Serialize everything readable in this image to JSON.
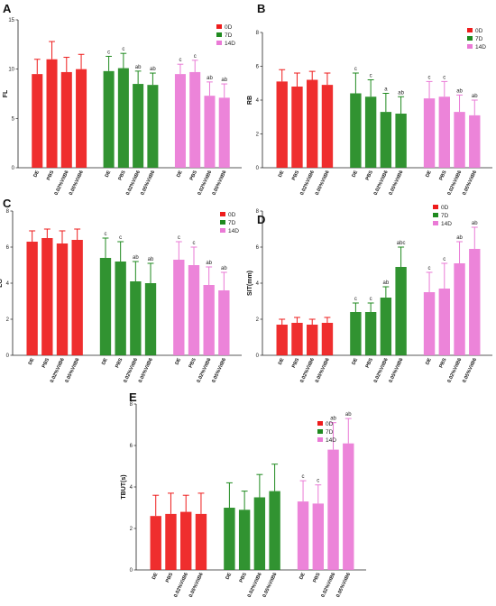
{
  "colors": {
    "0D": "#ee1c1c",
    "7D": "#1f8a1f",
    "14D": "#ea7ad6",
    "axis": "#222222"
  },
  "chart_data": [
    {
      "panel": "A",
      "type": "bar",
      "ylabel": "FL",
      "ylim": [
        0,
        15
      ],
      "yticks": [
        0,
        5,
        10,
        15
      ],
      "categories": [
        "DE",
        "PBS",
        "0.02%VitB6",
        "0.05%VitB6"
      ],
      "legend": [
        "0D",
        "7D",
        "14D"
      ],
      "series": [
        {
          "name": "0D",
          "values": [
            9.5,
            11.0,
            9.7,
            10.0
          ],
          "errors": [
            1.5,
            1.8,
            1.5,
            1.5
          ],
          "annotations": [
            "",
            "",
            "",
            ""
          ]
        },
        {
          "name": "7D",
          "values": [
            9.8,
            10.1,
            8.5,
            8.4
          ],
          "errors": [
            1.5,
            1.5,
            1.3,
            1.2
          ],
          "annotations": [
            "c",
            "c",
            "ab",
            "ab"
          ]
        },
        {
          "name": "14D",
          "values": [
            9.5,
            9.7,
            7.3,
            7.1
          ],
          "errors": [
            1.0,
            1.2,
            1.4,
            1.4
          ],
          "annotations": [
            "c",
            "c",
            "ab",
            "ab"
          ]
        }
      ]
    },
    {
      "panel": "B",
      "type": "bar",
      "ylabel": "RB",
      "ylim": [
        0,
        8
      ],
      "yticks": [
        0,
        2,
        4,
        6,
        8
      ],
      "categories": [
        "DE",
        "PBS",
        "0.02%VitB6",
        "0.05%VitB6"
      ],
      "legend": [
        "0D",
        "7D",
        "14D"
      ],
      "series": [
        {
          "name": "0D",
          "values": [
            5.1,
            4.8,
            5.2,
            4.9
          ],
          "errors": [
            0.7,
            0.8,
            0.5,
            0.7
          ],
          "annotations": [
            "",
            "",
            "",
            ""
          ]
        },
        {
          "name": "7D",
          "values": [
            4.4,
            4.2,
            3.3,
            3.2
          ],
          "errors": [
            1.2,
            1.0,
            1.1,
            1.0
          ],
          "annotations": [
            "c",
            "c",
            "a",
            "ab"
          ]
        },
        {
          "name": "14D",
          "values": [
            4.1,
            4.2,
            3.3,
            3.1
          ],
          "errors": [
            1.0,
            0.9,
            1.0,
            0.9
          ],
          "annotations": [
            "c",
            "c",
            "ab",
            "ab"
          ]
        }
      ]
    },
    {
      "panel": "C",
      "type": "bar",
      "ylabel": "LG",
      "ylim": [
        0,
        8
      ],
      "yticks": [
        0,
        2,
        4,
        6,
        8
      ],
      "categories": [
        "DE",
        "PBS",
        "0.02%VitB6",
        "0.05%VitB6"
      ],
      "legend": [
        "0D",
        "7D",
        "14D"
      ],
      "series": [
        {
          "name": "0D",
          "values": [
            6.3,
            6.5,
            6.2,
            6.4
          ],
          "errors": [
            0.6,
            0.5,
            0.7,
            0.6
          ],
          "annotations": [
            "",
            "",
            "",
            ""
          ]
        },
        {
          "name": "7D",
          "values": [
            5.4,
            5.2,
            4.1,
            4.0
          ],
          "errors": [
            1.1,
            1.1,
            1.1,
            1.1
          ],
          "annotations": [
            "c",
            "c",
            "ab",
            "ab"
          ]
        },
        {
          "name": "14D",
          "values": [
            5.3,
            5.0,
            3.9,
            3.6
          ],
          "errors": [
            1.0,
            1.0,
            1.0,
            1.0
          ],
          "annotations": [
            "c",
            "c",
            "ab",
            "ab"
          ]
        }
      ]
    },
    {
      "panel": "D",
      "type": "bar",
      "ylabel": "SIT(mm)",
      "ylim": [
        0,
        8
      ],
      "yticks": [
        0,
        2,
        4,
        6,
        8
      ],
      "categories": [
        "DE",
        "PBS",
        "0.02%VitB6",
        "0.05%VitB6"
      ],
      "legend": [
        "0D",
        "7D",
        "14D"
      ],
      "series": [
        {
          "name": "0D",
          "values": [
            1.7,
            1.8,
            1.7,
            1.8
          ],
          "errors": [
            0.3,
            0.3,
            0.3,
            0.3
          ],
          "annotations": [
            "",
            "",
            "",
            ""
          ]
        },
        {
          "name": "7D",
          "values": [
            2.4,
            2.4,
            3.2,
            4.9
          ],
          "errors": [
            0.5,
            0.5,
            0.6,
            1.1
          ],
          "annotations": [
            "c",
            "c",
            "ab",
            "abc"
          ]
        },
        {
          "name": "14D",
          "values": [
            3.5,
            3.7,
            5.1,
            5.9
          ],
          "errors": [
            1.1,
            1.4,
            1.2,
            1.2
          ],
          "annotations": [
            "c",
            "c",
            "ab",
            "ab"
          ]
        }
      ]
    },
    {
      "panel": "E",
      "type": "bar",
      "ylabel": "TBUT(s)",
      "ylim": [
        0,
        8
      ],
      "yticks": [
        0,
        2,
        4,
        6,
        8
      ],
      "categories": [
        "DE",
        "PBS",
        "0.02%VitB6",
        "0.05%VitB6"
      ],
      "legend": [
        "0D",
        "7D",
        "14D"
      ],
      "series": [
        {
          "name": "0D",
          "values": [
            2.6,
            2.7,
            2.8,
            2.7
          ],
          "errors": [
            1.0,
            1.0,
            0.8,
            1.0
          ],
          "annotations": [
            "",
            "",
            "",
            ""
          ]
        },
        {
          "name": "7D",
          "values": [
            3.0,
            2.9,
            3.5,
            3.8
          ],
          "errors": [
            1.2,
            0.9,
            1.1,
            1.3
          ],
          "annotations": [
            "",
            "",
            "",
            ""
          ]
        },
        {
          "name": "14D",
          "values": [
            3.3,
            3.2,
            5.8,
            6.1
          ],
          "errors": [
            1.0,
            0.9,
            1.3,
            1.2
          ],
          "annotations": [
            "c",
            "c",
            "ab",
            "ab"
          ]
        }
      ]
    }
  ]
}
